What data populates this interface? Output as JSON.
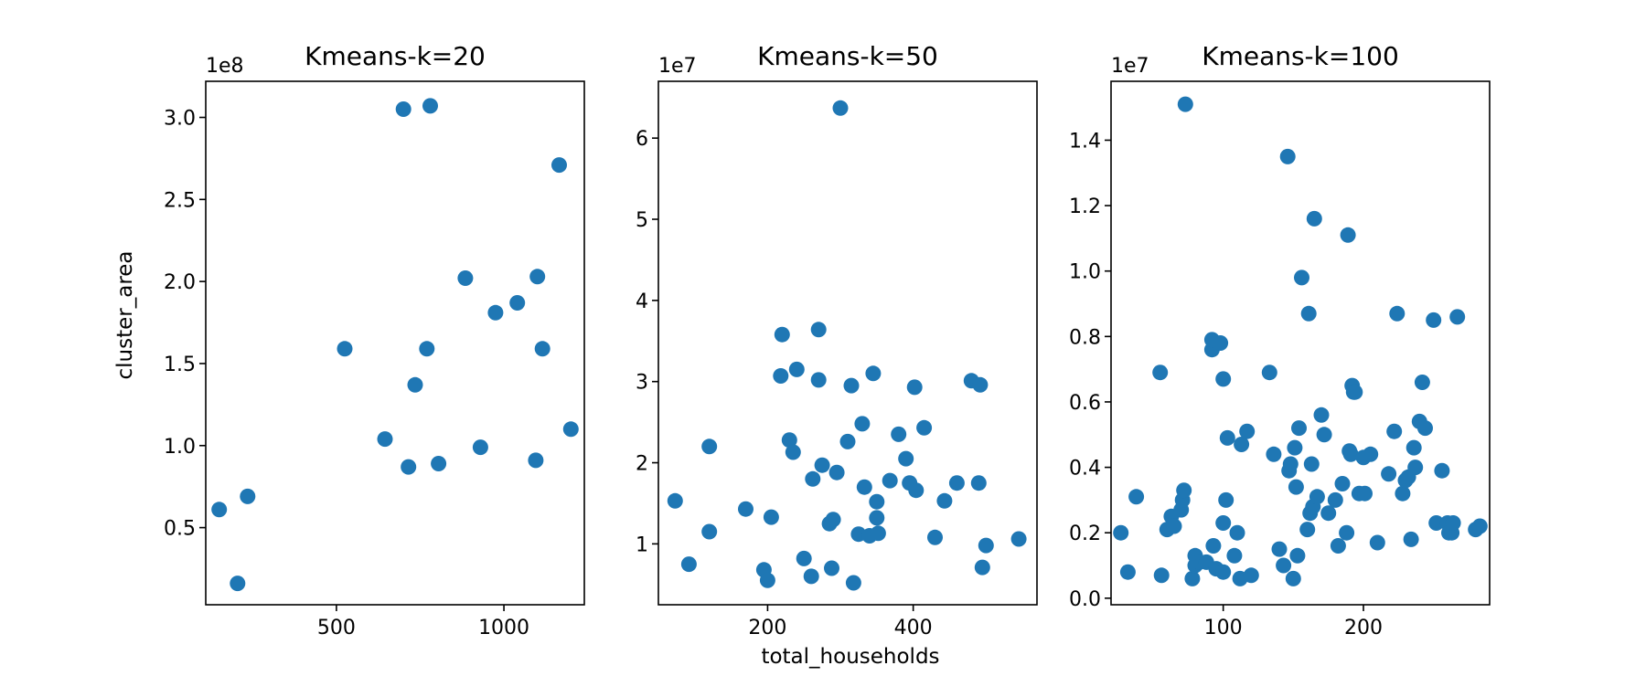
{
  "figure": {
    "xlabel": "total_households",
    "ylabel": "cluster_area"
  },
  "chart_data": [
    {
      "type": "scatter",
      "title": "Kmeans-k=20",
      "color": "#1f77b4",
      "y_offset_label": "1e8",
      "y_unit": 100000000,
      "xlim": [
        110,
        1240
      ],
      "ylim": [
        0.03,
        3.22
      ],
      "xticks": [
        500,
        1000
      ],
      "yticks": [
        0.5,
        1.0,
        1.5,
        2.0,
        2.5,
        3.0
      ],
      "x": [
        150,
        205,
        235,
        525,
        645,
        700,
        715,
        735,
        770,
        780,
        805,
        885,
        930,
        975,
        1040,
        1095,
        1100,
        1115,
        1165,
        1200
      ],
      "y": [
        0.61,
        0.16,
        0.69,
        1.59,
        1.04,
        3.05,
        0.87,
        1.37,
        1.59,
        3.07,
        0.89,
        2.02,
        0.99,
        1.81,
        1.87,
        0.91,
        2.03,
        1.59,
        2.71,
        1.1
      ]
    },
    {
      "type": "scatter",
      "title": "Kmeans-k=50",
      "color": "#1f77b4",
      "y_offset_label": "1e7",
      "y_unit": 10000000,
      "xlim": [
        50,
        570
      ],
      "ylim": [
        0.25,
        6.7
      ],
      "xticks": [
        200,
        400
      ],
      "yticks": [
        1,
        2,
        3,
        4,
        5,
        6
      ],
      "x": [
        73,
        92,
        120,
        120,
        170,
        205,
        195,
        200,
        218,
        220,
        230,
        235,
        240,
        250,
        260,
        262,
        270,
        270,
        275,
        285,
        288,
        290,
        295,
        300,
        310,
        315,
        318,
        325,
        330,
        333,
        340,
        345,
        350,
        350,
        352,
        368,
        380,
        390,
        395,
        402,
        404,
        415,
        430,
        443,
        460,
        480,
        490,
        492,
        495,
        500,
        545
      ],
      "y": [
        1.53,
        0.75,
        2.2,
        1.15,
        1.43,
        1.33,
        0.68,
        0.55,
        3.07,
        3.58,
        2.28,
        2.13,
        3.15,
        0.82,
        0.6,
        1.8,
        3.64,
        3.02,
        1.97,
        1.25,
        0.7,
        1.3,
        1.88,
        6.37,
        2.26,
        2.95,
        0.52,
        1.12,
        2.48,
        1.7,
        1.1,
        3.1,
        1.52,
        1.32,
        1.13,
        1.78,
        2.35,
        2.05,
        1.75,
        2.93,
        1.66,
        2.43,
        1.08,
        1.53,
        1.75,
        3.01,
        1.75,
        2.96,
        0.71,
        0.98,
        1.06
      ]
    },
    {
      "type": "scatter",
      "title": "Kmeans-k=100",
      "color": "#1f77b4",
      "y_offset_label": "1e7",
      "y_unit": 10000000,
      "xlim": [
        20,
        290
      ],
      "ylim": [
        -0.02,
        1.58
      ],
      "xticks": [
        100,
        200
      ],
      "yticks": [
        0.0,
        0.2,
        0.4,
        0.6,
        0.8,
        1.0,
        1.2,
        1.4
      ],
      "x": [
        27,
        32,
        38,
        55,
        56,
        60,
        63,
        65,
        70,
        71,
        72,
        73,
        78,
        80,
        80,
        83,
        88,
        92,
        92,
        93,
        95,
        98,
        100,
        100,
        100,
        102,
        103,
        108,
        110,
        112,
        113,
        117,
        120,
        133,
        136,
        140,
        143,
        146,
        147,
        148,
        150,
        151,
        152,
        153,
        154,
        156,
        160,
        161,
        162,
        163,
        164,
        165,
        167,
        170,
        172,
        175,
        180,
        182,
        185,
        188,
        189,
        190,
        191,
        192,
        193,
        194,
        197,
        200,
        201,
        205,
        210,
        218,
        222,
        224,
        228,
        230,
        232,
        234,
        236,
        237,
        240,
        242,
        244,
        250,
        252,
        256,
        260,
        261,
        263,
        264,
        267,
        280,
        283
      ],
      "y": [
        0.2,
        0.08,
        0.31,
        0.69,
        0.07,
        0.21,
        0.25,
        0.22,
        0.27,
        0.3,
        0.33,
        1.51,
        0.06,
        0.1,
        0.13,
        0.11,
        0.11,
        0.76,
        0.79,
        0.16,
        0.09,
        0.78,
        0.67,
        0.23,
        0.08,
        0.3,
        0.49,
        0.13,
        0.2,
        0.06,
        0.47,
        0.51,
        0.07,
        0.69,
        0.44,
        0.15,
        0.1,
        1.35,
        0.39,
        0.41,
        0.06,
        0.46,
        0.34,
        0.13,
        0.52,
        0.98,
        0.21,
        0.87,
        0.26,
        0.41,
        0.28,
        1.16,
        0.31,
        0.56,
        0.5,
        0.26,
        0.3,
        0.16,
        0.35,
        0.2,
        1.11,
        0.45,
        0.44,
        0.65,
        0.63,
        0.63,
        0.32,
        0.43,
        0.32,
        0.44,
        0.17,
        0.38,
        0.51,
        0.87,
        0.32,
        0.36,
        0.37,
        0.18,
        0.46,
        0.4,
        0.54,
        0.66,
        0.52,
        0.85,
        0.23,
        0.39,
        0.23,
        0.2,
        0.2,
        0.23,
        0.86,
        0.21,
        0.22
      ]
    }
  ]
}
